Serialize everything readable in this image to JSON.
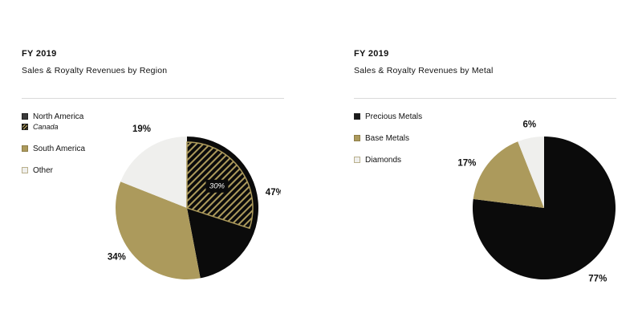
{
  "colors": {
    "black": "#0b0b0b",
    "gold": "#ac9a5c",
    "light": "#efefed",
    "outline_light": "#b9b08c"
  },
  "region_chart": {
    "period": "FY 2019",
    "title": "Sales & Royalty Revenues by Region",
    "legend": [
      {
        "label": "North America",
        "swatch": "black"
      },
      {
        "label": "Canada",
        "swatch": "hatch"
      },
      {
        "label": "South America",
        "swatch": "gold"
      },
      {
        "label": "Other",
        "swatch": "light"
      }
    ],
    "inner_label": "30%",
    "slice_labels": [
      "47%",
      "34%",
      "19%"
    ]
  },
  "metal_chart": {
    "period": "FY 2019",
    "title": "Sales & Royalty Revenues by Metal",
    "legend": [
      {
        "label": "Precious Metals",
        "swatch": "black"
      },
      {
        "label": "Base Metals",
        "swatch": "gold"
      },
      {
        "label": "Diamonds",
        "swatch": "light"
      }
    ],
    "slice_labels": [
      "77%",
      "17%",
      "6%"
    ]
  },
  "chart_data": [
    {
      "type": "pie",
      "title": "Sales & Royalty Revenues by Region",
      "subtitle": "FY 2019",
      "categories": [
        "North America",
        "South America",
        "Other"
      ],
      "values": [
        47,
        34,
        19
      ],
      "sub_segments": [
        {
          "parent": "North America",
          "name": "Canada",
          "value": 30
        }
      ],
      "colors": [
        "#0b0b0b",
        "#ac9a5c",
        "#efefed"
      ],
      "legend": "left"
    },
    {
      "type": "pie",
      "title": "Sales & Royalty Revenues by Metal",
      "subtitle": "FY 2019",
      "categories": [
        "Precious Metals",
        "Base Metals",
        "Diamonds"
      ],
      "values": [
        77,
        17,
        6
      ],
      "colors": [
        "#0b0b0b",
        "#ac9a5c",
        "#efefed"
      ],
      "legend": "left"
    }
  ]
}
